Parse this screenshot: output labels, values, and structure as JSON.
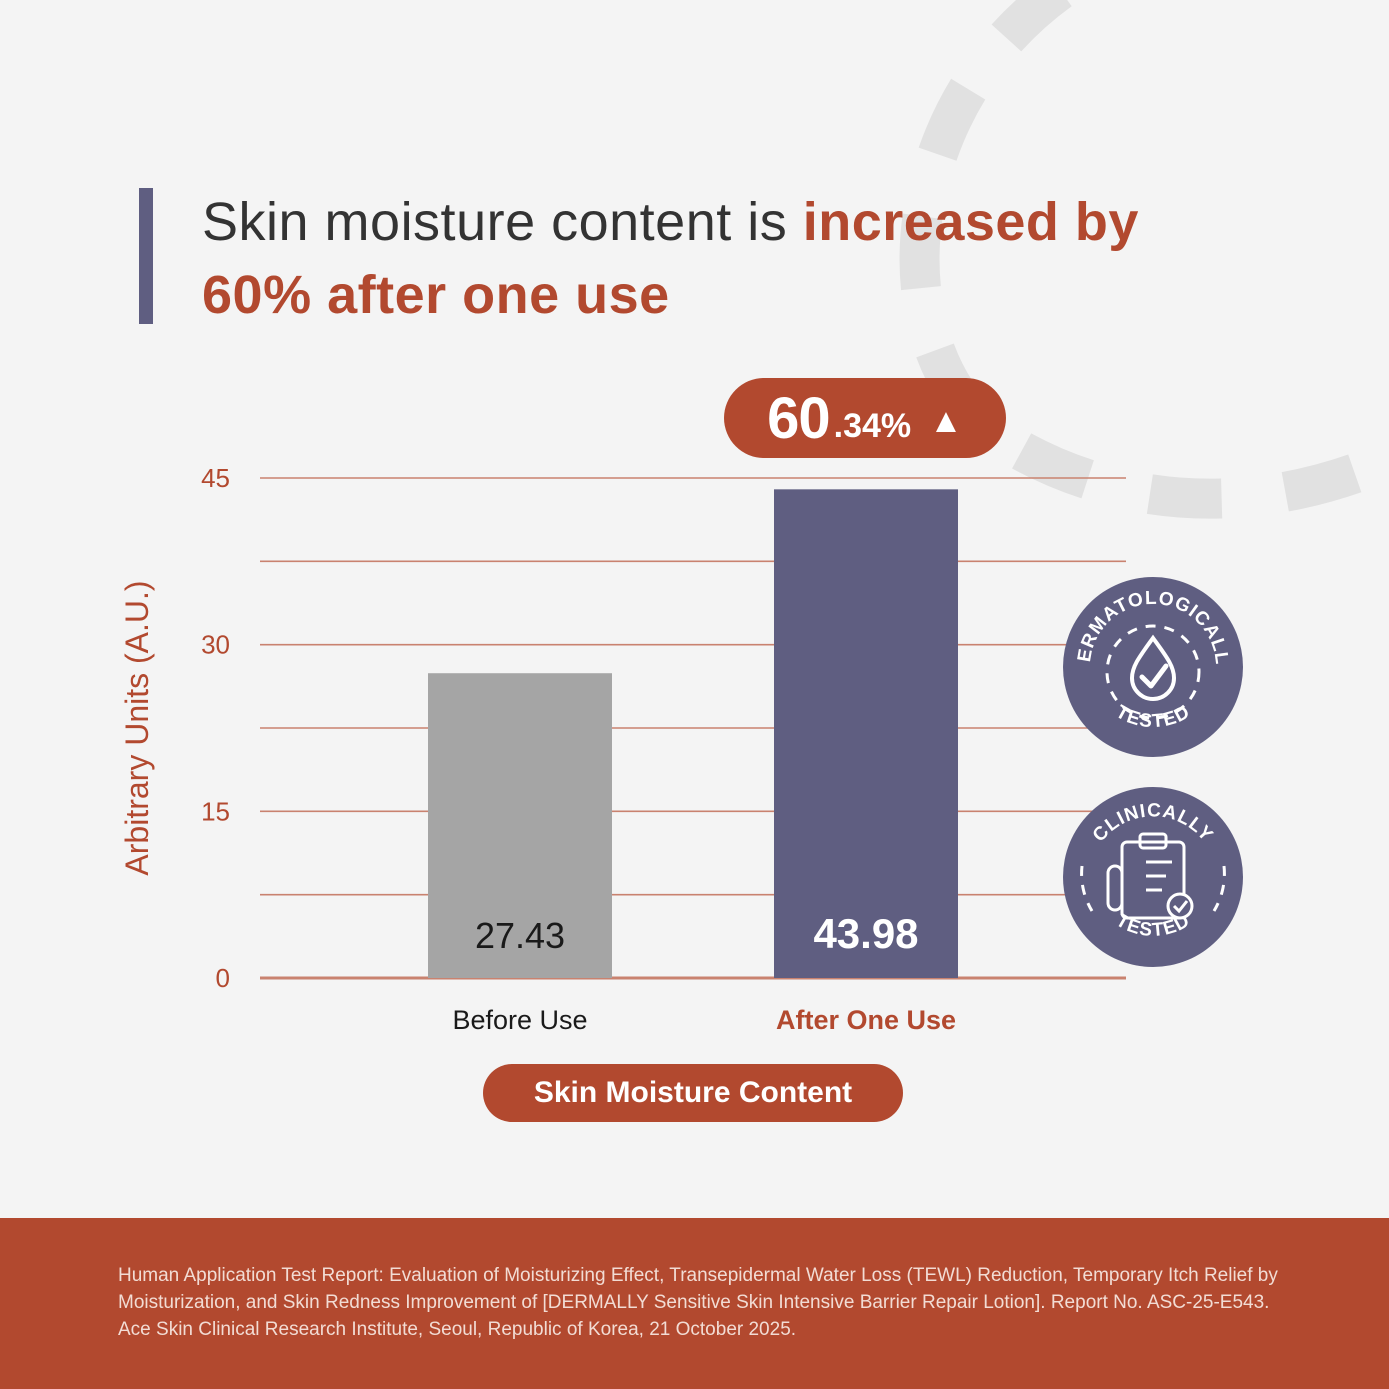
{
  "headline": {
    "plain": "Skin moisture content is ",
    "highlight_1": "increased by",
    "highlight_2": "60% after one use"
  },
  "badge": {
    "big": "60",
    "small": ".34%",
    "arrow_icon": "up-triangle-icon"
  },
  "chart_data": {
    "type": "bar",
    "categories": [
      "Before Use",
      "After One Use"
    ],
    "values": [
      27.43,
      43.98
    ],
    "value_labels": [
      "27.43",
      "43.98"
    ],
    "bar_colors": [
      "#a5a5a5",
      "#5f5e81"
    ],
    "ylabel": "Arbitrary Units (A.U.)",
    "yticks": [
      0,
      15,
      30,
      45
    ],
    "ylim": [
      0,
      45
    ],
    "grid": true,
    "legend": "Skin Moisture Content",
    "increase_label": "60.34%"
  },
  "seals": {
    "derm_top": "DERMATOLOGICALLY",
    "derm_bottom": "TESTED",
    "clin_top": "CLINICALLY",
    "clin_bottom": "TESTED"
  },
  "footer": {
    "citation": "Human Application Test Report: Evaluation of Moisturizing Effect, Transepidermal Water Loss (TEWL) Reduction, Temporary Itch Relief by Moisturization, and Skin Redness Improvement of [DERMALLY Sensitive Skin Intensive Barrier Repair Lotion]. Report No. ASC-25-E543. Ace Skin Clinical Research Institute, Seoul, Republic of Korea, 21 October 2025."
  },
  "colors": {
    "accent": "#b2492f",
    "navy": "#5f5e81",
    "gray_bar": "#a5a5a5",
    "background": "#f4f4f4"
  }
}
